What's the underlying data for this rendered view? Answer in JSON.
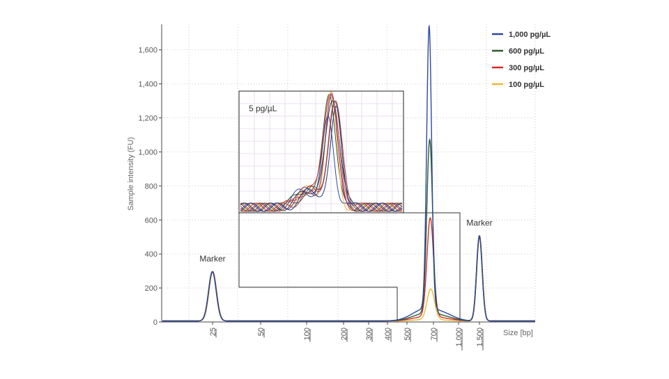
{
  "chart_data": {
    "type": "line",
    "ylabel": "Sample intensity (FU)",
    "xlabel": "Size [bp]",
    "ylim": [
      0,
      1750
    ],
    "y_ticks": [
      0,
      200,
      400,
      600,
      800,
      1000,
      1200,
      1400,
      1600
    ],
    "y_tick_labels": [
      "0",
      "200",
      "400",
      "600",
      "800",
      "1,000",
      "1,200",
      "1,400",
      "1,600"
    ],
    "x_ticks": [
      25,
      50,
      100,
      200,
      300,
      400,
      500,
      700,
      1000,
      1500
    ],
    "x_tick_labels": [
      "25",
      "50",
      "100",
      "200",
      "300",
      "400",
      "500",
      "700",
      "1,000",
      "1,500"
    ],
    "grid": true,
    "legend_position": "top-right",
    "series": [
      {
        "name": "1,000 pg/µL",
        "color": "#2b4a9c",
        "peak_value": 1660
      },
      {
        "name": "600 pg/µL",
        "color": "#2e5a2e",
        "peak_value": 1020
      },
      {
        "name": "300 pg/µL",
        "color": "#d42a2a",
        "peak_value": 580
      },
      {
        "name": "100 pg/µL",
        "color": "#e8b830",
        "peak_value": 180
      }
    ],
    "marker_peaks": [
      {
        "size_bp": 25,
        "value": 290
      },
      {
        "size_bp": 1500,
        "value": 500
      }
    ],
    "annotations": [
      {
        "text": "Marker",
        "at_bp": 25
      },
      {
        "text": "Marker",
        "at_bp": 1500
      }
    ],
    "inset": {
      "label": "5 pg/µL",
      "colors": [
        "#2b4a9c",
        "#2e5a2e",
        "#d42a2a",
        "#e8b830",
        "#8a3a8a",
        "#333333",
        "#c85050",
        "#555555",
        "#a04040",
        "#1c3a7c"
      ]
    }
  }
}
